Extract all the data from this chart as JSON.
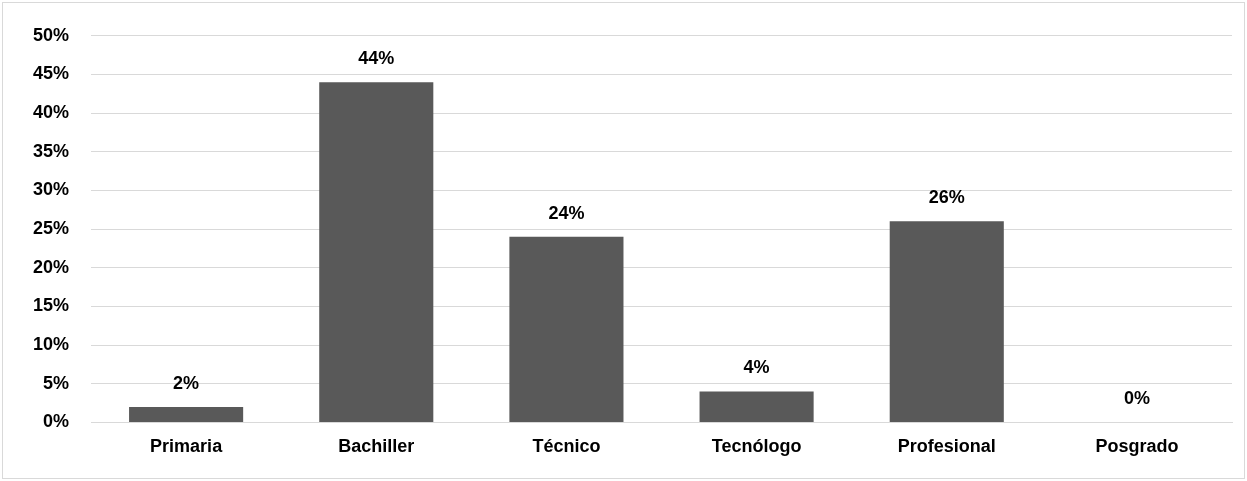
{
  "chart_data": {
    "type": "bar",
    "categories": [
      "Primaria",
      "Bachiller",
      "Técnico",
      "Tecnólogo",
      "Profesional",
      "Posgrado"
    ],
    "values": [
      2,
      44,
      24,
      4,
      26,
      0
    ],
    "color": "#595959",
    "value_labels": [
      "2%",
      "44%",
      "24%",
      "4%",
      "26%",
      "0%"
    ],
    "ylim": [
      0,
      50
    ],
    "yticks": [
      {
        "value": 0,
        "label": "0%"
      },
      {
        "value": 5,
        "label": "5%"
      },
      {
        "value": 10,
        "label": "10%"
      },
      {
        "value": 15,
        "label": "15%"
      },
      {
        "value": 20,
        "label": "20%"
      },
      {
        "value": 25,
        "label": "25%"
      },
      {
        "value": 30,
        "label": "30%"
      },
      {
        "value": 35,
        "label": "35%"
      },
      {
        "value": 40,
        "label": "40%"
      },
      {
        "value": 45,
        "label": "45%"
      },
      {
        "value": 50,
        "label": "50%"
      }
    ],
    "grid": "y",
    "legend": false
  }
}
